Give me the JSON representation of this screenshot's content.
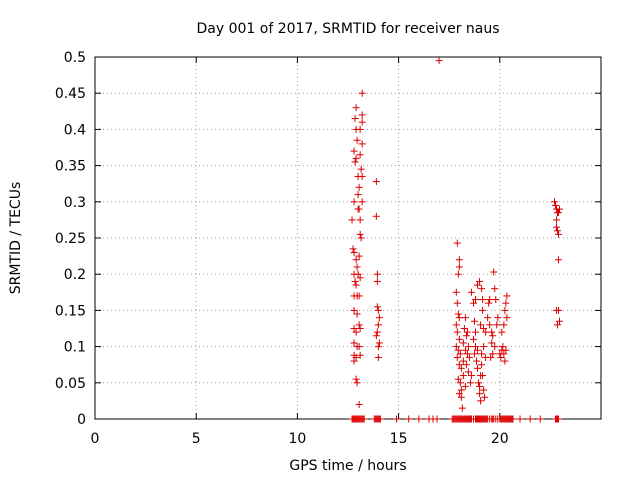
{
  "chart_data": {
    "type": "scatter",
    "title": "Day 001 of 2017, SRMTID for receiver naus",
    "xlabel": "GPS time / hours",
    "ylabel": "SRMTID / TECUs",
    "xlim": [
      0,
      25
    ],
    "ylim": [
      0,
      0.5
    ],
    "xticks": [
      0,
      5,
      10,
      15,
      20
    ],
    "xtick_labels": [
      "0",
      "5",
      "10",
      "15",
      "20"
    ],
    "yticks": [
      0,
      0.05,
      0.1,
      0.15,
      0.2,
      0.25,
      0.3,
      0.35,
      0.4,
      0.45,
      0.5
    ],
    "ytick_labels": [
      "0",
      "0.05",
      "0.1",
      "0.15",
      "0.2",
      "0.25",
      "0.3",
      "0.35",
      "0.4",
      "0.45",
      "0.5"
    ],
    "grid": true,
    "marker": "+",
    "color": "#dd0000",
    "series": [
      {
        "name": "SRMTID",
        "points": [
          [
            12.7,
            0.275
          ],
          [
            12.8,
            0.3
          ],
          [
            12.8,
            0.37
          ],
          [
            12.85,
            0.355
          ],
          [
            12.85,
            0.415
          ],
          [
            12.9,
            0.43
          ],
          [
            12.9,
            0.4
          ],
          [
            12.9,
            0.36
          ],
          [
            12.95,
            0.385
          ],
          [
            13.0,
            0.335
          ],
          [
            13.0,
            0.31
          ],
          [
            13.0,
            0.29
          ],
          [
            13.05,
            0.29
          ],
          [
            13.05,
            0.32
          ],
          [
            13.1,
            0.365
          ],
          [
            13.1,
            0.4
          ],
          [
            13.1,
            0.255
          ],
          [
            13.15,
            0.25
          ],
          [
            13.2,
            0.45
          ],
          [
            13.2,
            0.42
          ],
          [
            13.2,
            0.41
          ],
          [
            13.2,
            0.38
          ],
          [
            13.15,
            0.345
          ],
          [
            13.2,
            0.335
          ],
          [
            13.2,
            0.3
          ],
          [
            13.1,
            0.275
          ],
          [
            12.75,
            0.235
          ],
          [
            12.8,
            0.23
          ],
          [
            12.9,
            0.22
          ],
          [
            12.95,
            0.21
          ],
          [
            13.05,
            0.225
          ],
          [
            12.8,
            0.2
          ],
          [
            12.9,
            0.185
          ],
          [
            13.0,
            0.2
          ],
          [
            13.1,
            0.195
          ],
          [
            12.8,
            0.17
          ],
          [
            12.95,
            0.17
          ],
          [
            13.05,
            0.17
          ],
          [
            12.8,
            0.15
          ],
          [
            12.95,
            0.145
          ],
          [
            13.05,
            0.13
          ],
          [
            12.8,
            0.125
          ],
          [
            12.9,
            0.12
          ],
          [
            13.1,
            0.125
          ],
          [
            12.8,
            0.105
          ],
          [
            12.95,
            0.1
          ],
          [
            13.05,
            0.1
          ],
          [
            12.8,
            0.088
          ],
          [
            12.9,
            0.085
          ],
          [
            13.1,
            0.088
          ],
          [
            12.9,
            0.055
          ],
          [
            12.95,
            0.05
          ],
          [
            13.05,
            0.02
          ],
          [
            12.8,
            0.08
          ],
          [
            12.85,
            0.19
          ],
          [
            13.9,
            0.328
          ],
          [
            13.9,
            0.28
          ],
          [
            13.95,
            0.2
          ],
          [
            13.95,
            0.19
          ],
          [
            13.95,
            0.155
          ],
          [
            14.0,
            0.15
          ],
          [
            14.0,
            0.13
          ],
          [
            13.95,
            0.12
          ],
          [
            14.05,
            0.105
          ],
          [
            14.0,
            0.1
          ],
          [
            13.9,
            0.115
          ],
          [
            14.05,
            0.14
          ],
          [
            14.0,
            0.085
          ],
          [
            17.0,
            0.495
          ],
          [
            17.9,
            0.243
          ],
          [
            18.0,
            0.22
          ],
          [
            18.0,
            0.21
          ],
          [
            17.95,
            0.2
          ],
          [
            17.85,
            0.175
          ],
          [
            17.9,
            0.16
          ],
          [
            17.95,
            0.145
          ],
          [
            18.0,
            0.14
          ],
          [
            17.85,
            0.13
          ],
          [
            17.9,
            0.12
          ],
          [
            18.0,
            0.11
          ],
          [
            17.85,
            0.1
          ],
          [
            17.95,
            0.095
          ],
          [
            18.05,
            0.09
          ],
          [
            17.9,
            0.085
          ],
          [
            18.0,
            0.075
          ],
          [
            18.1,
            0.07
          ],
          [
            17.95,
            0.055
          ],
          [
            18.05,
            0.05
          ],
          [
            18.1,
            0.04
          ],
          [
            18.0,
            0.035
          ],
          [
            18.1,
            0.03
          ],
          [
            18.15,
            0.015
          ],
          [
            18.2,
            0.08
          ],
          [
            18.2,
            0.105
          ],
          [
            18.25,
            0.125
          ],
          [
            18.3,
            0.14
          ],
          [
            18.3,
            0.095
          ],
          [
            18.35,
            0.115
          ],
          [
            18.4,
            0.12
          ],
          [
            18.4,
            0.09
          ],
          [
            18.45,
            0.1
          ],
          [
            18.5,
            0.085
          ],
          [
            18.35,
            0.075
          ],
          [
            18.45,
            0.065
          ],
          [
            18.55,
            0.05
          ],
          [
            18.6,
            0.06
          ],
          [
            18.2,
            0.06
          ],
          [
            18.3,
            0.045
          ],
          [
            18.6,
            0.175
          ],
          [
            18.7,
            0.16
          ],
          [
            18.75,
            0.135
          ],
          [
            18.8,
            0.12
          ],
          [
            18.8,
            0.1
          ],
          [
            18.9,
            0.095
          ],
          [
            18.7,
            0.11
          ],
          [
            18.85,
            0.08
          ],
          [
            18.9,
            0.07
          ],
          [
            18.75,
            0.09
          ],
          [
            18.95,
            0.05
          ],
          [
            19.0,
            0.045
          ],
          [
            19.0,
            0.035
          ],
          [
            19.05,
            0.06
          ],
          [
            19.05,
            0.025
          ],
          [
            18.8,
            0.165
          ],
          [
            18.9,
            0.185
          ],
          [
            19.0,
            0.19
          ],
          [
            19.1,
            0.18
          ],
          [
            19.15,
            0.165
          ],
          [
            19.15,
            0.15
          ],
          [
            19.05,
            0.13
          ],
          [
            19.2,
            0.125
          ],
          [
            19.2,
            0.1
          ],
          [
            19.1,
            0.09
          ],
          [
            19.1,
            0.075
          ],
          [
            19.15,
            0.06
          ],
          [
            19.2,
            0.04
          ],
          [
            19.25,
            0.03
          ],
          [
            19.3,
            0.12
          ],
          [
            19.3,
            0.085
          ],
          [
            19.4,
            0.14
          ],
          [
            19.45,
            0.16
          ],
          [
            19.5,
            0.165
          ],
          [
            19.5,
            0.13
          ],
          [
            19.6,
            0.12
          ],
          [
            19.6,
            0.105
          ],
          [
            19.65,
            0.115
          ],
          [
            19.7,
            0.203
          ],
          [
            19.75,
            0.18
          ],
          [
            19.8,
            0.165
          ],
          [
            19.65,
            0.09
          ],
          [
            19.75,
            0.1
          ],
          [
            19.55,
            0.085
          ],
          [
            19.85,
            0.13
          ],
          [
            19.9,
            0.14
          ],
          [
            20.0,
            0.09
          ],
          [
            20.05,
            0.085
          ],
          [
            20.1,
            0.095
          ],
          [
            20.15,
            0.1
          ],
          [
            20.2,
            0.09
          ],
          [
            20.25,
            0.08
          ],
          [
            20.1,
            0.12
          ],
          [
            20.2,
            0.13
          ],
          [
            20.25,
            0.15
          ],
          [
            20.3,
            0.16
          ],
          [
            20.35,
            0.17
          ],
          [
            20.3,
            0.095
          ],
          [
            20.35,
            0.14
          ],
          [
            22.7,
            0.3
          ],
          [
            22.75,
            0.295
          ],
          [
            22.8,
            0.29
          ],
          [
            22.85,
            0.285
          ],
          [
            22.9,
            0.285
          ],
          [
            22.95,
            0.29
          ],
          [
            22.8,
            0.265
          ],
          [
            22.85,
            0.26
          ],
          [
            22.9,
            0.255
          ],
          [
            22.8,
            0.275
          ],
          [
            22.9,
            0.22
          ],
          [
            22.8,
            0.15
          ],
          [
            22.85,
            0.13
          ],
          [
            22.9,
            0.15
          ],
          [
            22.95,
            0.135
          ]
        ],
        "zero_points_x": [
          12.7,
          12.75,
          12.8,
          12.85,
          12.9,
          12.95,
          13.0,
          13.05,
          13.1,
          13.15,
          13.2,
          13.25,
          13.3,
          13.8,
          13.85,
          13.9,
          13.95,
          14.0,
          14.05,
          14.1,
          14.9,
          15.5,
          16.0,
          16.5,
          16.7,
          16.9,
          17.65,
          17.7,
          17.75,
          17.8,
          17.85,
          17.9,
          17.95,
          18.0,
          18.05,
          18.1,
          18.15,
          18.2,
          18.25,
          18.3,
          18.35,
          18.4,
          18.45,
          18.5,
          18.55,
          18.6,
          18.7,
          18.8,
          18.85,
          18.9,
          18.95,
          19.0,
          19.05,
          19.1,
          19.15,
          19.2,
          19.25,
          19.3,
          19.35,
          19.4,
          19.5,
          19.6,
          19.65,
          19.7,
          19.8,
          19.9,
          20.0,
          20.05,
          20.1,
          20.15,
          20.2,
          20.25,
          20.3,
          20.35,
          20.4,
          20.45,
          20.5,
          20.55,
          20.6,
          20.65,
          21.0,
          21.5,
          22.0,
          22.75,
          22.8,
          22.85,
          22.9
        ]
      }
    ]
  }
}
